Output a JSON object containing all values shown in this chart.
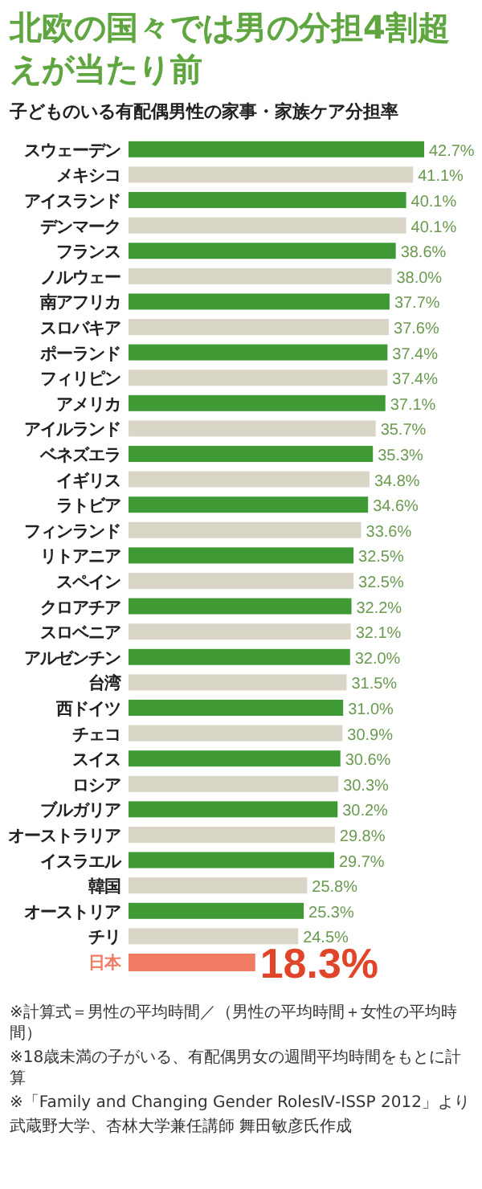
{
  "chart_data": {
    "type": "bar",
    "orientation": "horizontal",
    "title": "北欧の国々では男の分担4割超えが当たり前",
    "subtitle": "子どものいる有配偶男性の家事・家族ケア分担率",
    "categories": [
      "スウェーデン",
      "メキシコ",
      "アイスランド",
      "デンマーク",
      "フランス",
      "ノルウェー",
      "南アフリカ",
      "スロバキア",
      "ポーランド",
      "フィリピン",
      "アメリカ",
      "アイルランド",
      "ベネズエラ",
      "イギリス",
      "ラトビア",
      "フィンランド",
      "リトアニア",
      "スペイン",
      "クロアチア",
      "スロベニア",
      "アルゼンチン",
      "台湾",
      "西ドイツ",
      "チェコ",
      "スイス",
      "ロシア",
      "ブルガリア",
      "オーストラリア",
      "イスラエル",
      "韓国",
      "オーストリア",
      "チリ",
      "日本"
    ],
    "values": [
      42.7,
      41.1,
      40.1,
      40.1,
      38.6,
      38.0,
      37.7,
      37.6,
      37.4,
      37.4,
      37.1,
      35.7,
      35.3,
      34.8,
      34.6,
      33.6,
      32.5,
      32.5,
      32.2,
      32.1,
      32.0,
      31.5,
      31.0,
      30.9,
      30.6,
      30.3,
      30.2,
      29.8,
      29.7,
      25.8,
      25.3,
      24.5,
      18.3
    ],
    "colors": [
      "#3f9a35",
      "#d9d5c7",
      "#3f9a35",
      "#d9d5c7",
      "#3f9a35",
      "#d9d5c7",
      "#3f9a35",
      "#d9d5c7",
      "#3f9a35",
      "#d9d5c7",
      "#3f9a35",
      "#d9d5c7",
      "#3f9a35",
      "#d9d5c7",
      "#3f9a35",
      "#d9d5c7",
      "#3f9a35",
      "#d9d5c7",
      "#3f9a35",
      "#d9d5c7",
      "#3f9a35",
      "#d9d5c7",
      "#3f9a35",
      "#d9d5c7",
      "#3f9a35",
      "#d9d5c7",
      "#3f9a35",
      "#d9d5c7",
      "#3f9a35",
      "#d9d5c7",
      "#3f9a35",
      "#d9d5c7",
      "#f07c64"
    ],
    "value_labels": [
      "42.7%",
      "41.1%",
      "40.1%",
      "40.1%",
      "38.6%",
      "38.0%",
      "37.7%",
      "37.6%",
      "37.4%",
      "37.4%",
      "37.1%",
      "35.7%",
      "35.3%",
      "34.8%",
      "34.6%",
      "33.6%",
      "32.5%",
      "32.5%",
      "32.2%",
      "32.1%",
      "32.0%",
      "31.5%",
      "31.0%",
      "30.9%",
      "30.6%",
      "30.3%",
      "30.2%",
      "29.8%",
      "29.7%",
      "25.8%",
      "25.3%",
      "24.5%",
      "18.3%"
    ],
    "annotations": [
      "※計算式＝男性の平均時間／（男性の平均時間＋女性の平均時間）",
      "※18歳未満の子がいる、有配偶男女の週間平均時間をもとに計算",
      "※「Family and Changing Gender RolesⅣ-ISSP 2012」より",
      "武蔵野大学、杏林大学兼任講師 舞田敏彦氏作成"
    ]
  }
}
